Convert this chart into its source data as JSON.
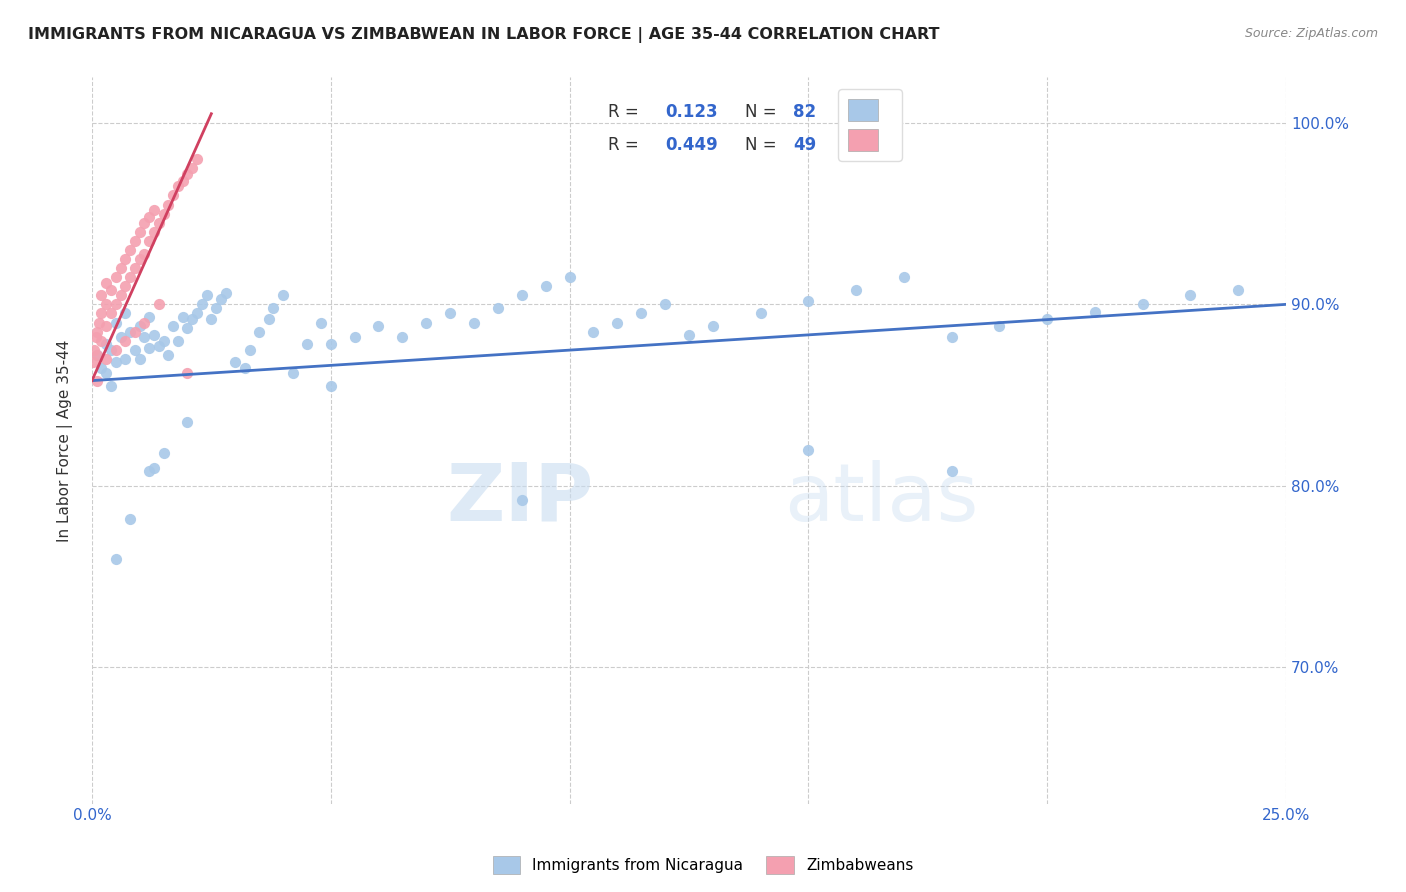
{
  "title": "IMMIGRANTS FROM NICARAGUA VS ZIMBABWEAN IN LABOR FORCE | AGE 35-44 CORRELATION CHART",
  "source": "Source: ZipAtlas.com",
  "ylabel": "In Labor Force | Age 35-44",
  "x_min": 0.0,
  "x_max": 0.25,
  "y_min": 0.625,
  "y_max": 1.025,
  "x_ticks": [
    0.0,
    0.05,
    0.1,
    0.15,
    0.2,
    0.25
  ],
  "x_tick_labels": [
    "0.0%",
    "",
    "",
    "",
    "",
    "25.0%"
  ],
  "y_ticks": [
    0.7,
    0.8,
    0.9,
    1.0
  ],
  "y_tick_labels": [
    "70.0%",
    "80.0%",
    "90.0%",
    "100.0%"
  ],
  "blue_color": "#a8c8e8",
  "pink_color": "#f4a0b0",
  "blue_line_color": "#4472c4",
  "pink_line_color": "#d04060",
  "watermark_zip": "ZIP",
  "watermark_atlas": "atlas",
  "background_color": "#ffffff",
  "grid_color": "#cccccc",
  "blue_scatter_x": [
    0.001,
    0.002,
    0.003,
    0.003,
    0.004,
    0.004,
    0.005,
    0.005,
    0.006,
    0.007,
    0.007,
    0.008,
    0.009,
    0.01,
    0.01,
    0.011,
    0.012,
    0.012,
    0.013,
    0.014,
    0.015,
    0.016,
    0.017,
    0.018,
    0.019,
    0.02,
    0.021,
    0.022,
    0.023,
    0.024,
    0.025,
    0.026,
    0.027,
    0.028,
    0.03,
    0.032,
    0.033,
    0.035,
    0.037,
    0.038,
    0.04,
    0.042,
    0.045,
    0.048,
    0.05,
    0.055,
    0.06,
    0.065,
    0.07,
    0.075,
    0.08,
    0.085,
    0.09,
    0.095,
    0.1,
    0.105,
    0.11,
    0.115,
    0.12,
    0.125,
    0.13,
    0.14,
    0.15,
    0.16,
    0.17,
    0.18,
    0.19,
    0.2,
    0.21,
    0.22,
    0.23,
    0.24,
    0.013,
    0.02,
    0.05,
    0.15,
    0.005,
    0.008,
    0.012,
    0.015,
    0.09,
    0.18
  ],
  "blue_scatter_y": [
    0.872,
    0.865,
    0.878,
    0.862,
    0.875,
    0.855,
    0.868,
    0.89,
    0.882,
    0.87,
    0.895,
    0.885,
    0.875,
    0.888,
    0.87,
    0.882,
    0.876,
    0.893,
    0.883,
    0.877,
    0.88,
    0.872,
    0.888,
    0.88,
    0.893,
    0.887,
    0.892,
    0.895,
    0.9,
    0.905,
    0.892,
    0.898,
    0.903,
    0.906,
    0.868,
    0.865,
    0.875,
    0.885,
    0.892,
    0.898,
    0.905,
    0.862,
    0.878,
    0.89,
    0.878,
    0.882,
    0.888,
    0.882,
    0.89,
    0.895,
    0.89,
    0.898,
    0.905,
    0.91,
    0.915,
    0.885,
    0.89,
    0.895,
    0.9,
    0.883,
    0.888,
    0.895,
    0.902,
    0.908,
    0.915,
    0.882,
    0.888,
    0.892,
    0.896,
    0.9,
    0.905,
    0.908,
    0.81,
    0.835,
    0.855,
    0.82,
    0.76,
    0.782,
    0.808,
    0.818,
    0.792,
    0.808
  ],
  "pink_scatter_x": [
    0.0002,
    0.0005,
    0.0008,
    0.001,
    0.001,
    0.0015,
    0.002,
    0.002,
    0.002,
    0.003,
    0.003,
    0.003,
    0.004,
    0.004,
    0.005,
    0.005,
    0.006,
    0.006,
    0.007,
    0.007,
    0.008,
    0.008,
    0.009,
    0.009,
    0.01,
    0.01,
    0.011,
    0.011,
    0.012,
    0.012,
    0.013,
    0.013,
    0.014,
    0.015,
    0.016,
    0.017,
    0.018,
    0.019,
    0.02,
    0.021,
    0.022,
    0.001,
    0.003,
    0.005,
    0.007,
    0.009,
    0.011,
    0.014,
    0.02
  ],
  "pink_scatter_y": [
    0.868,
    0.875,
    0.882,
    0.872,
    0.885,
    0.89,
    0.88,
    0.895,
    0.905,
    0.888,
    0.9,
    0.912,
    0.895,
    0.908,
    0.9,
    0.915,
    0.905,
    0.92,
    0.91,
    0.925,
    0.915,
    0.93,
    0.92,
    0.935,
    0.925,
    0.94,
    0.928,
    0.945,
    0.935,
    0.948,
    0.94,
    0.952,
    0.945,
    0.95,
    0.955,
    0.96,
    0.965,
    0.968,
    0.972,
    0.975,
    0.98,
    0.858,
    0.87,
    0.875,
    0.88,
    0.885,
    0.89,
    0.9,
    0.862
  ],
  "blue_line_x": [
    0.0,
    0.25
  ],
  "blue_line_y": [
    0.858,
    0.9
  ],
  "pink_line_x": [
    0.0,
    0.025
  ],
  "pink_line_y": [
    0.858,
    1.005
  ]
}
